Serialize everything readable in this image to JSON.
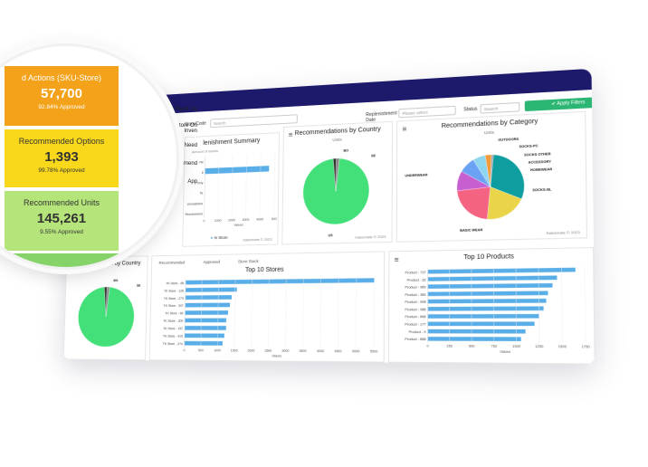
{
  "filters": {
    "store_label": "Store/Code",
    "store_placeholder": "Search",
    "replenishment_label": "Replenishment Date",
    "replenishment_placeholder": "Please select",
    "status_label": "Status",
    "status_placeholder": "Search",
    "apply_label": "✔ Apply Filters"
  },
  "sidebar": {
    "items": [
      "DC On Hand Inv",
      "Store On Inven",
      "Need",
      "Recommend",
      "App"
    ]
  },
  "kpis": [
    {
      "label": "d Actions (SKU-Store)",
      "value": "57,700",
      "sub": "92.84% Approved"
    },
    {
      "label": "Recommended Options",
      "value": "1,393",
      "sub": "99.78% Approved"
    },
    {
      "label": "Recommended Units",
      "value": "145,261",
      "sub": "9.55% Approved"
    }
  ],
  "panels": {
    "replenishment": {
      "title": "lenishment Summary",
      "legend_top": "Amount of Issues",
      "categories": [
        "Re",
        "lf",
        "Only",
        "Ta",
        "Unmatched",
        "Recommend"
      ],
      "x_ticks": [
        "0",
        "1000",
        "2000",
        "3000",
        "4000",
        "500"
      ],
      "x_label": "Values",
      "legend": "In Store",
      "footer": "Salesmate © 2023",
      "colors": {
        "bar": "#5aaee8"
      }
    },
    "by_country": {
      "title": "Recommendations by Country",
      "subtitle": "Units",
      "labels": [
        "BO",
        "SE",
        "US"
      ],
      "footer": "Salesmate © 2023"
    },
    "by_category": {
      "title": "Recommendations by Category",
      "subtitle": "Units",
      "labels": [
        "OUTDOORS",
        "SOCKS-PC",
        "SOCKS OTHER",
        "ACCESSORY",
        "HOMEWEAR",
        "SOCKS-NL",
        "UNDERWEAR",
        "BASIC WEAR"
      ],
      "footer": "Salesmate © 2023"
    },
    "needed_units": {
      "title": "Needed Units by Country",
      "labels": [
        "BO",
        "SE"
      ]
    },
    "top_stores": {
      "tabs": [
        "Recommended",
        "Approved",
        "Store Stock"
      ],
      "title": "Top 10 Stores",
      "categories": [
        "TK Store - 65",
        "TK Store - 126",
        "TK Store - 273",
        "TK Store - 347",
        "TK Store - 66",
        "TK Store - 300",
        "TK Store - 157",
        "TK Store - 415",
        "TK Store - 274"
      ],
      "x_ticks": [
        "0",
        "500",
        "1000",
        "1500",
        "2000",
        "2500",
        "3000",
        "3500",
        "4000",
        "4500",
        "5000",
        "5500"
      ],
      "x_label": "Values"
    },
    "top_products": {
      "title": "Top 10 Products",
      "categories": [
        "Product - 737",
        "Product - 32",
        "Product - 989",
        "Product - 384",
        "Product - 908",
        "Product - 988",
        "Product - 868",
        "Product - 177",
        "Product - 9",
        "Product - 868"
      ],
      "x_ticks": [
        "0",
        "250",
        "500",
        "750",
        "1000",
        "1250",
        "1500",
        "1750"
      ],
      "x_label": "Values"
    }
  },
  "chart_data": [
    {
      "type": "bar",
      "title": "lenishment Summary",
      "categories": [
        "Re",
        "lf",
        "Only",
        "Ta",
        "Unmatched",
        "Recommend"
      ],
      "series": [
        {
          "name": "In Store",
          "values": [
            0,
            4600,
            0,
            0,
            0,
            0
          ]
        }
      ],
      "xlabel": "Values",
      "xlim": [
        0,
        5000
      ]
    },
    {
      "type": "pie",
      "title": "Recommendations by Country",
      "categories": [
        "US",
        "BO",
        "SE"
      ],
      "values": [
        97,
        1.5,
        1.5
      ]
    },
    {
      "type": "pie",
      "title": "Recommendations by Category",
      "categories": [
        "UNDERWEAR",
        "BASIC WEAR",
        "SOCKS-NL",
        "HOMEWEAR",
        "ACCESSORY",
        "SOCKS OTHER",
        "SOCKS-PC",
        "OUTDOORS"
      ],
      "values": [
        30,
        20,
        22,
        10,
        8,
        6,
        3,
        1
      ]
    },
    {
      "type": "pie",
      "title": "Needed Units by Country",
      "categories": [
        "US",
        "BO",
        "SE"
      ],
      "values": [
        97,
        1.5,
        1.5
      ]
    },
    {
      "type": "bar",
      "title": "Top 10 Stores",
      "categories": [
        "TK Store - 65",
        "TK Store - 126",
        "TK Store - 273",
        "TK Store - 347",
        "TK Store - 66",
        "TK Store - 300",
        "TK Store - 157",
        "TK Store - 415",
        "TK Store - 274"
      ],
      "values": [
        5500,
        1550,
        1400,
        1350,
        1300,
        1250,
        1250,
        1200,
        1150
      ],
      "xlabel": "Values",
      "xlim": [
        0,
        5500
      ]
    },
    {
      "type": "bar",
      "title": "Top 10 Products",
      "categories": [
        "Product - 737",
        "Product - 32",
        "Product - 989",
        "Product - 384",
        "Product - 908",
        "Product - 988",
        "Product - 868",
        "Product - 177",
        "Product - 9",
        "Product - 868"
      ],
      "values": [
        1650,
        1450,
        1400,
        1350,
        1330,
        1300,
        1250,
        1200,
        1100,
        1050
      ],
      "xlabel": "Values",
      "xlim": [
        0,
        1750
      ]
    }
  ],
  "colors": {
    "topbar": "#1e1a6b",
    "green": "#43e07a",
    "bar": "#5aaee8",
    "apply": "#2bb673",
    "kpi_orange": "#f3a21a",
    "kpi_yellow": "#f9d81b",
    "kpi_green": "#b5e57a"
  }
}
